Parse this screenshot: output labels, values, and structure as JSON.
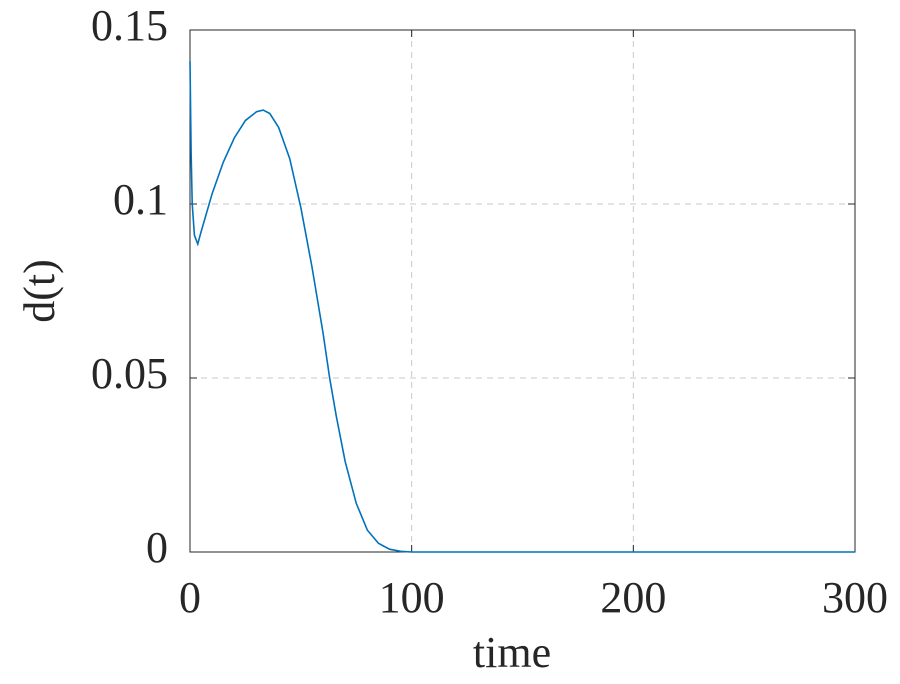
{
  "chart_data": {
    "type": "line",
    "xlabel": "time",
    "ylabel": "d(t)",
    "x": [
      0,
      0.5,
      1,
      2,
      3.5,
      5,
      10,
      15,
      20,
      25,
      30,
      33,
      36,
      40,
      45,
      50,
      55,
      60,
      63,
      66,
      70,
      75,
      80,
      85,
      90,
      95,
      100,
      150,
      200,
      250,
      300
    ],
    "series": [
      {
        "color": "#0072bd",
        "values": [
          0.141,
          0.115,
          0.1,
          0.091,
          0.0885,
          0.092,
          0.103,
          0.112,
          0.119,
          0.124,
          0.1265,
          0.127,
          0.126,
          0.122,
          0.113,
          0.099,
          0.082,
          0.063,
          0.05,
          0.039,
          0.026,
          0.014,
          0.0063,
          0.0025,
          0.0008,
          0.0002,
          0,
          0,
          0,
          0,
          0
        ]
      }
    ],
    "xlim": [
      0,
      300
    ],
    "xticks": [
      0,
      100,
      200,
      300
    ],
    "ylim": [
      0,
      0.15
    ],
    "yticks": [
      0,
      0.05,
      0.1,
      0.15
    ],
    "grid": true
  }
}
